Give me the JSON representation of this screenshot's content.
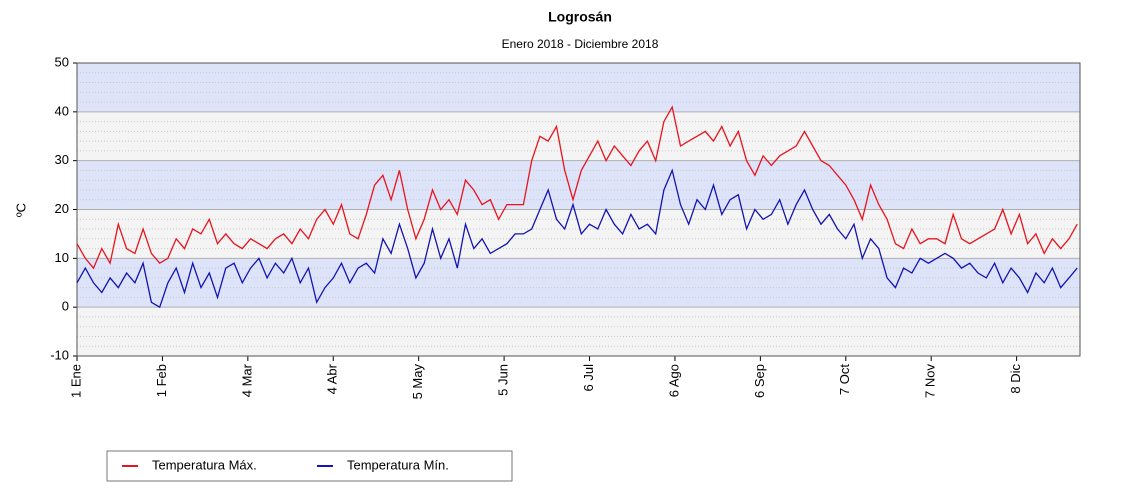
{
  "chart_data": {
    "type": "line",
    "title": "Logrosán",
    "subtitle": "Enero 2018 - Diciembre 2018",
    "y_label": "ºC",
    "xlim": [
      0,
      364
    ],
    "xticks": [
      {
        "value": 0,
        "label": "1 Ene"
      },
      {
        "value": 31,
        "label": "1 Feb"
      },
      {
        "value": 62,
        "label": "4 Mar"
      },
      {
        "value": 93,
        "label": "4 Abr"
      },
      {
        "value": 124,
        "label": "5 May"
      },
      {
        "value": 155,
        "label": "5 Jun"
      },
      {
        "value": 186,
        "label": "6 Jul"
      },
      {
        "value": 217,
        "label": "6 Ago"
      },
      {
        "value": 248,
        "label": "6 Sep"
      },
      {
        "value": 279,
        "label": "7 Oct"
      },
      {
        "value": 310,
        "label": "7 Nov"
      },
      {
        "value": 341,
        "label": "8 Dic"
      }
    ],
    "ylim": [
      -10,
      50
    ],
    "yticks": [
      -10,
      0,
      10,
      20,
      30,
      40,
      50
    ],
    "grid": true,
    "x": [
      0,
      3,
      6,
      9,
      12,
      15,
      18,
      21,
      24,
      27,
      30,
      33,
      36,
      39,
      42,
      45,
      48,
      51,
      54,
      57,
      60,
      63,
      66,
      69,
      72,
      75,
      78,
      81,
      84,
      87,
      90,
      93,
      96,
      99,
      102,
      105,
      108,
      111,
      114,
      117,
      120,
      123,
      126,
      129,
      132,
      135,
      138,
      141,
      144,
      147,
      150,
      153,
      156,
      159,
      162,
      165,
      168,
      171,
      174,
      177,
      180,
      183,
      186,
      189,
      192,
      195,
      198,
      201,
      204,
      207,
      210,
      213,
      216,
      219,
      222,
      225,
      228,
      231,
      234,
      237,
      240,
      243,
      246,
      249,
      252,
      255,
      258,
      261,
      264,
      267,
      270,
      273,
      276,
      279,
      282,
      285,
      288,
      291,
      294,
      297,
      300,
      303,
      306,
      309,
      312,
      315,
      318,
      321,
      324,
      327,
      330,
      333,
      336,
      339,
      342,
      345,
      348,
      351,
      354,
      357,
      360,
      363
    ],
    "series": [
      {
        "name": "Temperatura Máx.",
        "color": "#e8141e",
        "values": [
          13,
          10,
          8,
          12,
          9,
          17,
          12,
          11,
          16,
          11,
          9,
          10,
          14,
          12,
          16,
          15,
          18,
          13,
          15,
          13,
          12,
          14,
          13,
          12,
          14,
          15,
          13,
          16,
          14,
          18,
          20,
          17,
          21,
          15,
          14,
          19,
          25,
          27,
          22,
          28,
          20,
          14,
          18,
          24,
          20,
          22,
          19,
          26,
          24,
          21,
          22,
          18,
          21,
          21,
          21,
          30,
          35,
          34,
          37,
          28,
          22,
          28,
          31,
          34,
          30,
          33,
          31,
          29,
          32,
          34,
          30,
          38,
          41,
          33,
          34,
          35,
          36,
          34,
          37,
          33,
          36,
          30,
          27,
          31,
          29,
          31,
          32,
          33,
          36,
          33,
          30,
          29,
          27,
          25,
          22,
          18,
          25,
          21,
          18,
          13,
          12,
          16,
          13,
          14,
          14,
          13,
          19,
          14,
          13,
          14,
          15,
          16,
          20,
          15,
          19,
          13,
          15,
          11,
          14,
          12,
          14,
          17
        ]
      },
      {
        "name": "Temperatura Mín.",
        "color": "#1414b4",
        "values": [
          5,
          8,
          5,
          3,
          6,
          4,
          7,
          5,
          9,
          1,
          0,
          5,
          8,
          3,
          9,
          4,
          7,
          2,
          8,
          9,
          5,
          8,
          10,
          6,
          9,
          7,
          10,
          5,
          8,
          1,
          4,
          6,
          9,
          5,
          8,
          9,
          7,
          14,
          11,
          17,
          12,
          6,
          9,
          16,
          10,
          14,
          8,
          17,
          12,
          14,
          11,
          12,
          13,
          15,
          15,
          16,
          20,
          24,
          18,
          16,
          21,
          15,
          17,
          16,
          20,
          17,
          15,
          19,
          16,
          17,
          15,
          24,
          28,
          21,
          17,
          22,
          20,
          25,
          19,
          22,
          23,
          16,
          20,
          18,
          19,
          22,
          17,
          21,
          24,
          20,
          17,
          19,
          16,
          14,
          17,
          10,
          14,
          12,
          6,
          4,
          8,
          7,
          10,
          9,
          10,
          11,
          10,
          8,
          9,
          7,
          6,
          9,
          5,
          8,
          6,
          3,
          7,
          5,
          8,
          4,
          6,
          8
        ]
      }
    ]
  }
}
